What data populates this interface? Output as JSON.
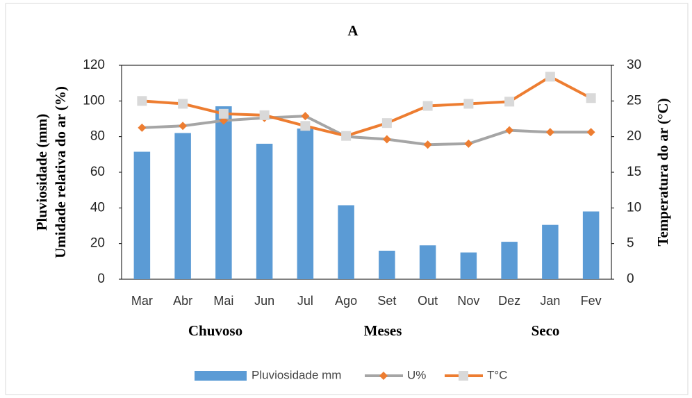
{
  "chart_data": {
    "type": "bar-line",
    "title": "A",
    "y_label": [
      "Pluviosidade (mm)",
      "Umidade relativa do ar (%)"
    ],
    "y2_label": "Temperatura do ar (°C)",
    "annotations": [
      "Chuvoso",
      "Meses",
      "Seco"
    ],
    "categories": [
      "Mar",
      "Abr",
      "Mai",
      "Jun",
      "Jul",
      "Ago",
      "Set",
      "Out",
      "Nov",
      "Dez",
      "Jan",
      "Fev"
    ],
    "series": [
      {
        "name": "Pluviosidade mm",
        "type": "bar",
        "color": "#5b9bd5",
        "values": [
          71.5,
          82,
          97,
          76,
          84.5,
          41.5,
          16,
          19,
          15,
          21,
          30.5,
          38
        ]
      },
      {
        "name": "U%",
        "type": "line",
        "color": "#a5a5a5",
        "marker": "diamond",
        "marker_color": "#ed7d31",
        "values": [
          85,
          86,
          89,
          90.5,
          91.5,
          80,
          78.5,
          75.5,
          76,
          83.5,
          82.5,
          82.5
        ]
      },
      {
        "name": "T°C",
        "type": "line",
        "axis": "y2",
        "color": "#ed7d31",
        "marker": "square",
        "marker_color": "#d9d9d9",
        "values": [
          25.0,
          24.6,
          23.2,
          23.0,
          21.5,
          20.1,
          21.9,
          24.3,
          24.6,
          24.9,
          28.4,
          25.4
        ]
      }
    ],
    "ylim": [
      0,
      120
    ],
    "yticks": [
      0,
      20,
      40,
      60,
      80,
      100,
      120
    ],
    "y2lim": [
      0,
      30
    ],
    "y2ticks": [
      0,
      5,
      10,
      15,
      20,
      25,
      30
    ]
  }
}
